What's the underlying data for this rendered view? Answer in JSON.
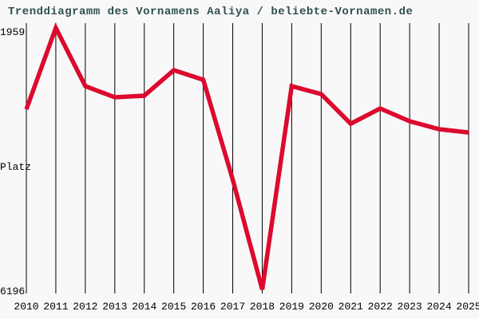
{
  "title": "Trenddiagramm des Vornamens Aaliya / beliebte-Vornamen.de",
  "y_axis": {
    "top_label": "1959",
    "middle_label": "Platz",
    "bottom_label": "6196"
  },
  "colors": {
    "background": "#f8f8f8",
    "title": "#2f4f4f",
    "line": "#dc0a2d",
    "grid": "#000000",
    "label": "#000000"
  },
  "chart_data": {
    "type": "line",
    "title": "Trenddiagramm des Vornamens Aaliya / beliebte-Vornamen.de",
    "categories": [
      "2010",
      "2011",
      "2012",
      "2013",
      "2014",
      "2015",
      "2016",
      "2017",
      "2018",
      "2019",
      "2020",
      "2021",
      "2022",
      "2023",
      "2024",
      "2025"
    ],
    "series": [
      {
        "name": "Aaliya",
        "values": [
          3277,
          1959,
          2902,
          3083,
          3057,
          2644,
          2799,
          4414,
          6196,
          2902,
          3031,
          3510,
          3264,
          3470,
          3600,
          3652
        ]
      }
    ],
    "ylabel": "Platz",
    "xlabel": "",
    "ylim": [
      1959,
      6196
    ],
    "y_axis_inverted": true,
    "grid": "vertical-only",
    "legend": "none"
  }
}
